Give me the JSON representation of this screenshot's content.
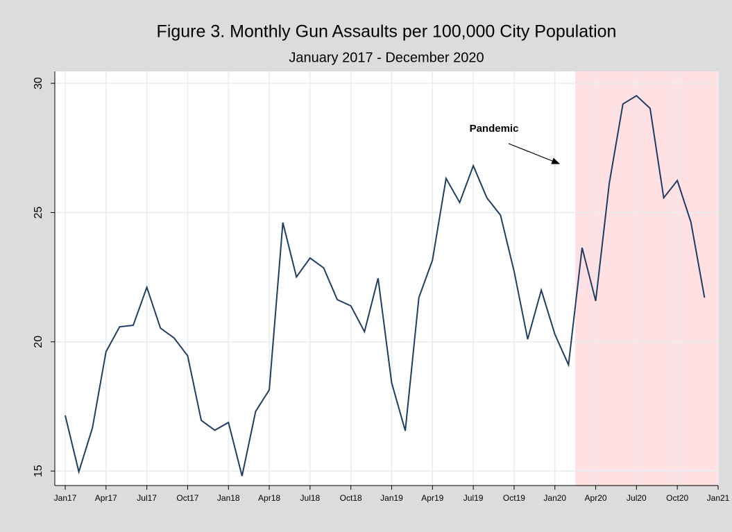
{
  "chart_data": {
    "type": "line",
    "title": "Figure 3. Monthly Gun Assaults per 100,000 City Population",
    "subtitle": "January 2017 - December 2020",
    "annotation": "Pandemic",
    "x": [
      0,
      1,
      2,
      3,
      4,
      5,
      6,
      7,
      8,
      9,
      10,
      11,
      12,
      13,
      14,
      15,
      16,
      17,
      18,
      19,
      20,
      21,
      22,
      23,
      24,
      25,
      26,
      27,
      28,
      29,
      30,
      31,
      32,
      33,
      34,
      35,
      36,
      37,
      38,
      39,
      40,
      41,
      42,
      43,
      44,
      45,
      46,
      47
    ],
    "series": [
      {
        "color": "#1f3d63",
        "values": [
          17.15,
          14.97,
          16.67,
          19.62,
          20.58,
          20.64,
          22.11,
          20.53,
          20.15,
          19.46,
          16.96,
          16.58,
          16.88,
          14.81,
          17.31,
          18.14,
          24.61,
          22.51,
          23.24,
          22.86,
          21.63,
          21.39,
          20.39,
          22.46,
          18.41,
          16.56,
          21.71,
          23.16,
          26.32,
          25.39,
          26.81,
          25.57,
          24.9,
          22.73,
          20.1,
          22.0,
          20.29,
          19.11,
          23.64,
          21.58,
          26.14,
          29.2,
          29.52,
          29.03,
          25.57,
          26.24,
          24.63,
          21.71
        ]
      }
    ],
    "shade": {
      "from": 37.5,
      "to": 48,
      "color": "#ffe0e3"
    },
    "xlim": [
      0,
      48
    ],
    "xticks": [
      {
        "value": 0,
        "label": "Jan17"
      },
      {
        "value": 3,
        "label": "Apr17"
      },
      {
        "value": 6,
        "label": "Jul17"
      },
      {
        "value": 9,
        "label": "Oct17"
      },
      {
        "value": 12,
        "label": "Jan18"
      },
      {
        "value": 15,
        "label": "Apr18"
      },
      {
        "value": 18,
        "label": "Jul18"
      },
      {
        "value": 21,
        "label": "Oct18"
      },
      {
        "value": 24,
        "label": "Jan19"
      },
      {
        "value": 27,
        "label": "Apr19"
      },
      {
        "value": 30,
        "label": "Jul19"
      },
      {
        "value": 33,
        "label": "Oct19"
      },
      {
        "value": 36,
        "label": "Jan20"
      },
      {
        "value": 39,
        "label": "Apr20"
      },
      {
        "value": 42,
        "label": "Jul20"
      },
      {
        "value": 45,
        "label": "Oct20"
      },
      {
        "value": 48,
        "label": "Jan21"
      }
    ],
    "ylim": [
      14.44,
      30.46
    ],
    "yticks": [
      15,
      20,
      25,
      30
    ],
    "grid": true
  }
}
